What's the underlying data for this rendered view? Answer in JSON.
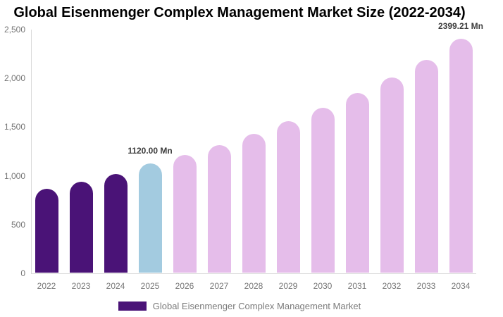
{
  "title": "Global Eisenmenger Complex Management Market Size (2022-2034)",
  "legend": {
    "label": "Global Eisenmenger Complex Management Market",
    "swatch_color": "#4a1377"
  },
  "axis": {
    "y_ticks": [
      {
        "label": "2,500",
        "value": 2500
      },
      {
        "label": "2,000",
        "value": 2000
      },
      {
        "label": "1,500",
        "value": 1500
      },
      {
        "label": "1,000",
        "value": 1000
      },
      {
        "label": "500",
        "value": 500
      },
      {
        "label": "0",
        "value": 0
      }
    ]
  },
  "chart_data": {
    "type": "bar",
    "title": "Global Eisenmenger Complex Management Market Size (2022-2034)",
    "xlabel": "",
    "ylabel": "",
    "unit": "Mn",
    "ylim": [
      0,
      2500
    ],
    "grid": false,
    "legend_position": "bottom",
    "categories": [
      "2022",
      "2023",
      "2024",
      "2025",
      "2026",
      "2027",
      "2028",
      "2029",
      "2030",
      "2031",
      "2032",
      "2033",
      "2034"
    ],
    "values": [
      860,
      935,
      1010,
      1120,
      1205,
      1310,
      1425,
      1550,
      1690,
      1840,
      2000,
      2180,
      2399.21
    ],
    "point_labels": {
      "2025": "1120.00 Mn",
      "2034": "2399.21 Mn"
    },
    "bar_colors": [
      "#4a1377",
      "#4a1377",
      "#4a1377",
      "#a3cbe0",
      "#e5bdea",
      "#e5bdea",
      "#e5bdea",
      "#e5bdea",
      "#e5bdea",
      "#e5bdea",
      "#e5bdea",
      "#e5bdea",
      "#e5bdea"
    ]
  },
  "colors": {
    "purple": "#4a1377",
    "blue": "#a3cbe0",
    "pink": "#e5bdea",
    "axis_line": "#d9d9d9",
    "tick_text": "#757575",
    "legend_text": "#7b7b7b",
    "value_label": "#3d3d3d",
    "title_text": "#000000",
    "background": "#ffffff"
  }
}
